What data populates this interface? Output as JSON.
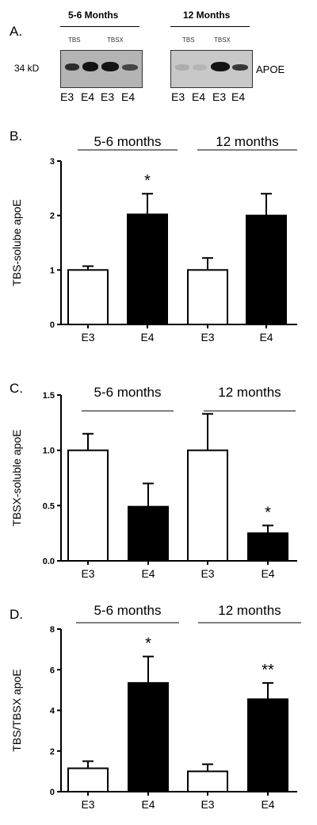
{
  "panel_letters": [
    "A.",
    "B.",
    "C.",
    "D."
  ],
  "blot": {
    "headers": [
      "5-6 Months",
      "12 Months"
    ],
    "buffer_labels_left": [
      "TBS",
      "TBSX"
    ],
    "buffer_labels_right": [
      "TBS",
      "TBSX"
    ],
    "mw_label": "34 kD",
    "protein_label": "APOE",
    "lanes_left": [
      "E3",
      "E4",
      "E3",
      "E4"
    ],
    "lanes_right": [
      "E3",
      "E4",
      "E3",
      "E4"
    ],
    "band_intensity_left": [
      0.85,
      1.0,
      1.0,
      0.7
    ],
    "band_intensity_right": [
      0.15,
      0.1,
      1.0,
      0.8
    ]
  },
  "chart_data": [
    {
      "type": "bar",
      "ylabel": "TBS-solube apoE",
      "ylim": [
        0,
        3
      ],
      "yticks": [
        "0",
        "1",
        "2",
        "3"
      ],
      "group_labels": [
        "5-6 months",
        "12 months"
      ],
      "categories": [
        "E3",
        "E4",
        "E3",
        "E4"
      ],
      "values": [
        1.0,
        2.02,
        1.0,
        2.0
      ],
      "errors": [
        0.07,
        0.38,
        0.22,
        0.4
      ],
      "fills": [
        "#ffffff",
        "#000000",
        "#ffffff",
        "#000000"
      ],
      "annotations": [
        "",
        "*",
        "",
        ""
      ]
    },
    {
      "type": "bar",
      "ylabel": "TBSX-soluble apoE",
      "ylim": [
        0,
        1.5
      ],
      "yticks": [
        "0.0",
        "0.5",
        "1.0",
        "1.5"
      ],
      "group_labels": [
        "5-6 months",
        "12 months"
      ],
      "categories": [
        "E3",
        "E4",
        "E3",
        "E4"
      ],
      "values": [
        1.0,
        0.49,
        1.0,
        0.25
      ],
      "errors": [
        0.15,
        0.21,
        0.33,
        0.07
      ],
      "fills": [
        "#ffffff",
        "#000000",
        "#ffffff",
        "#000000"
      ],
      "annotations": [
        "",
        "",
        "",
        "*"
      ]
    },
    {
      "type": "bar",
      "ylabel": "TBS/TBSX apoE",
      "ylim": [
        0,
        8
      ],
      "yticks": [
        "0",
        "2",
        "4",
        "6",
        "8"
      ],
      "group_labels": [
        "5-6 months",
        "12 months"
      ],
      "categories": [
        "E3",
        "E4",
        "E3",
        "E4"
      ],
      "values": [
        1.15,
        5.35,
        1.0,
        4.55
      ],
      "errors": [
        0.35,
        1.3,
        0.35,
        0.8
      ],
      "fills": [
        "#ffffff",
        "#000000",
        "#ffffff",
        "#000000"
      ],
      "annotations": [
        "",
        "*",
        "",
        "**"
      ]
    }
  ]
}
